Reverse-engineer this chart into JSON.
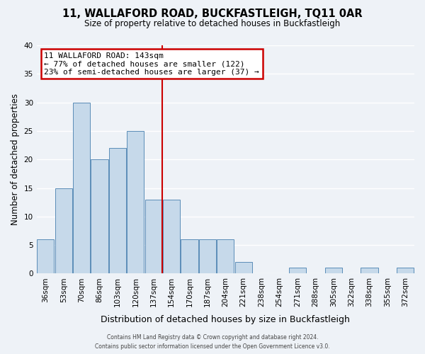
{
  "title": "11, WALLAFORD ROAD, BUCKFASTLEIGH, TQ11 0AR",
  "subtitle": "Size of property relative to detached houses in Buckfastleigh",
  "xlabel": "Distribution of detached houses by size in Buckfastleigh",
  "ylabel": "Number of detached properties",
  "bar_labels": [
    "36sqm",
    "53sqm",
    "70sqm",
    "86sqm",
    "103sqm",
    "120sqm",
    "137sqm",
    "154sqm",
    "170sqm",
    "187sqm",
    "204sqm",
    "221sqm",
    "238sqm",
    "254sqm",
    "271sqm",
    "288sqm",
    "305sqm",
    "322sqm",
    "338sqm",
    "355sqm",
    "372sqm"
  ],
  "bar_values": [
    6,
    15,
    30,
    20,
    22,
    25,
    13,
    13,
    6,
    6,
    6,
    2,
    0,
    0,
    1,
    0,
    1,
    0,
    1,
    0,
    1
  ],
  "bar_color": "#c6d9ea",
  "bar_edge_color": "#5b8db8",
  "ylim": [
    0,
    40
  ],
  "yticks": [
    0,
    5,
    10,
    15,
    20,
    25,
    30,
    35,
    40
  ],
  "vline_color": "#cc0000",
  "annotation_title": "11 WALLAFORD ROAD: 143sqm",
  "annotation_line1": "← 77% of detached houses are smaller (122)",
  "annotation_line2": "23% of semi-detached houses are larger (37) →",
  "annotation_box_color": "#cc0000",
  "background_color": "#eef2f7",
  "grid_color": "#ffffff",
  "footer_line1": "Contains HM Land Registry data © Crown copyright and database right 2024.",
  "footer_line2": "Contains public sector information licensed under the Open Government Licence v3.0."
}
